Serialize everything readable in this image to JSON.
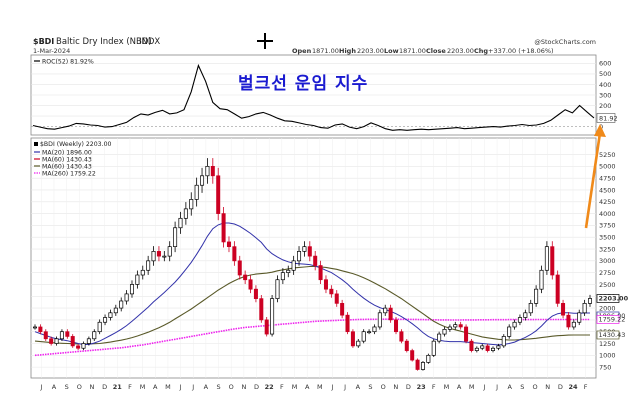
{
  "header": {
    "symbol": "$BDI",
    "name": "Baltic Dry Index (NBD)",
    "exchange": "INDX",
    "date": "1-Mar-2024",
    "source": "@StockCharts.com",
    "open_label": "Open",
    "open": "1871.00",
    "high_label": "High",
    "high": "2203.00",
    "low_label": "Low",
    "low": "1871.00",
    "close_label": "Close",
    "close": "2203.00",
    "chg_label": "Chg",
    "chg": "+337.00 (+18.06%)"
  },
  "overlay_title": "벌크선 운임 지수",
  "colors": {
    "price_up": "#000000",
    "price_down": "#cc0022",
    "ma20": "#3333aa",
    "ma60": "#5a5a2a",
    "ma260": "#ee22ee",
    "roc": "#000000",
    "arrow": "#f08a1a"
  },
  "chart_data": [
    {
      "type": "line",
      "title": "ROC(52) 81.92%",
      "legend": [
        "ROC(52) 81.92%"
      ],
      "ylim": [
        -80,
        680
      ],
      "y_ticks": [
        "600",
        "500",
        "400",
        "300",
        "200",
        "100",
        "0"
      ],
      "current_value_label": "81.92",
      "series": [
        {
          "name": "ROC(52)",
          "values": [
            10,
            -5,
            -20,
            -25,
            -10,
            5,
            30,
            25,
            15,
            10,
            -5,
            0,
            20,
            40,
            85,
            120,
            110,
            135,
            155,
            120,
            130,
            160,
            330,
            580,
            430,
            230,
            170,
            160,
            120,
            80,
            95,
            120,
            135,
            110,
            80,
            55,
            50,
            35,
            20,
            10,
            -10,
            -15,
            15,
            25,
            -5,
            -20,
            0,
            35,
            10,
            -20,
            -35,
            -30,
            -35,
            -30,
            -25,
            -30,
            -25,
            -20,
            -15,
            -10,
            -20,
            -15,
            -10,
            -5,
            0,
            -5,
            5,
            10,
            20,
            10,
            15,
            30,
            60,
            110,
            160,
            130,
            200,
            140,
            81.92
          ]
        }
      ]
    },
    {
      "type": "line",
      "title": "$BDI (Weekly) 2203.00",
      "legend": [
        "$BDI (Weekly) 2203.00",
        "MA(20) 1896.00",
        "MA(60) 1430.43",
        "MA(60) 1430.43",
        "MA(260) 1759.22"
      ],
      "ylim": [
        520,
        5600
      ],
      "y_ticks": [
        "5250",
        "5000",
        "4750",
        "4500",
        "4250",
        "4000",
        "3750",
        "3500",
        "3250",
        "3000",
        "2750",
        "2500",
        "2250",
        "2000",
        "1750",
        "1500",
        "1250",
        "1000",
        "750"
      ],
      "x_ticks": [
        "J",
        "A",
        "S",
        "O",
        "N",
        "D",
        "21",
        "F",
        "M",
        "A",
        "M",
        "J",
        "J",
        "A",
        "S",
        "O",
        "N",
        "D",
        "22",
        "F",
        "M",
        "A",
        "M",
        "J",
        "J",
        "A",
        "S",
        "O",
        "N",
        "D",
        "23",
        "F",
        "M",
        "A",
        "M",
        "J",
        "J",
        "A",
        "S",
        "O",
        "N",
        "D",
        "24",
        "F"
      ],
      "right_labels": [
        "2203.00",
        "1896.00",
        "1759.22",
        "1430.43"
      ],
      "series": [
        {
          "name": "Price",
          "values": [
            1600,
            1500,
            1350,
            1250,
            1350,
            1500,
            1400,
            1200,
            1150,
            1250,
            1350,
            1500,
            1700,
            1800,
            1900,
            2000,
            2150,
            2300,
            2500,
            2700,
            2800,
            3000,
            3200,
            3100,
            3100,
            3300,
            3700,
            3900,
            4100,
            4300,
            4600,
            4800,
            5000,
            4800,
            4000,
            3400,
            3300,
            3000,
            2700,
            2600,
            2400,
            2200,
            1750,
            1450,
            2200,
            2600,
            2750,
            2800,
            3000,
            3200,
            3300,
            3100,
            2900,
            2600,
            2400,
            2300,
            2100,
            1850,
            1500,
            1200,
            1300,
            1500,
            1500,
            1600,
            1900,
            2000,
            1750,
            1500,
            1300,
            1100,
            900,
            700,
            850,
            1000,
            1300,
            1450,
            1550,
            1600,
            1650,
            1600,
            1300,
            1100,
            1150,
            1200,
            1100,
            1150,
            1200,
            1400,
            1600,
            1700,
            1800,
            1900,
            2100,
            2400,
            2800,
            3300,
            2700,
            2100,
            1850,
            1600,
            1700,
            1900,
            2100,
            2203
          ]
        },
        {
          "name": "MA(20)",
          "values": [
            1500,
            1460,
            1420,
            1380,
            1350,
            1330,
            1310,
            1280,
            1250,
            1230,
            1230,
            1260,
            1300,
            1360,
            1420,
            1480,
            1550,
            1630,
            1720,
            1820,
            1920,
            2020,
            2130,
            2230,
            2330,
            2440,
            2550,
            2680,
            2820,
            2970,
            3140,
            3320,
            3520,
            3680,
            3760,
            3800,
            3800,
            3780,
            3730,
            3660,
            3580,
            3490,
            3390,
            3250,
            3150,
            3080,
            3020,
            2980,
            2950,
            2940,
            2930,
            2920,
            2890,
            2850,
            2800,
            2750,
            2680,
            2600,
            2510,
            2400,
            2300,
            2210,
            2130,
            2060,
            2010,
            1970,
            1930,
            1880,
            1820,
            1750,
            1670,
            1580,
            1480,
            1400,
            1350,
            1320,
            1300,
            1290,
            1290,
            1290,
            1280,
            1270,
            1260,
            1250,
            1240,
            1230,
            1220,
            1230,
            1250,
            1280,
            1330,
            1380,
            1440,
            1520,
            1620,
            1740,
            1830,
            1880,
            1900,
            1900,
            1890,
            1890,
            1895,
            1896
          ]
        },
        {
          "name": "MA(60)",
          "values": [
            1300,
            1290,
            1280,
            1270,
            1260,
            1255,
            1250,
            1245,
            1240,
            1240,
            1240,
            1245,
            1250,
            1265,
            1280,
            1300,
            1320,
            1345,
            1375,
            1410,
            1450,
            1490,
            1535,
            1585,
            1640,
            1700,
            1770,
            1840,
            1910,
            1980,
            2060,
            2140,
            2220,
            2300,
            2380,
            2450,
            2520,
            2580,
            2630,
            2670,
            2700,
            2720,
            2730,
            2740,
            2760,
            2790,
            2810,
            2830,
            2850,
            2860,
            2870,
            2880,
            2880,
            2870,
            2860,
            2840,
            2820,
            2790,
            2760,
            2730,
            2690,
            2640,
            2590,
            2530,
            2470,
            2410,
            2340,
            2270,
            2200,
            2120,
            2040,
            1960,
            1880,
            1800,
            1720,
            1660,
            1610,
            1570,
            1540,
            1510,
            1480,
            1450,
            1420,
            1390,
            1370,
            1355,
            1340,
            1330,
            1325,
            1325,
            1330,
            1340,
            1350,
            1360,
            1375,
            1390,
            1405,
            1415,
            1422,
            1428,
            1430,
            1430,
            1430,
            1430.43
          ]
        },
        {
          "name": "MA(260)",
          "values": [
            1000,
            1010,
            1020,
            1030,
            1040,
            1050,
            1060,
            1070,
            1080,
            1090,
            1100,
            1110,
            1120,
            1130,
            1140,
            1150,
            1160,
            1175,
            1190,
            1205,
            1220,
            1240,
            1260,
            1280,
            1300,
            1320,
            1340,
            1360,
            1380,
            1400,
            1420,
            1440,
            1460,
            1480,
            1500,
            1520,
            1540,
            1560,
            1575,
            1590,
            1600,
            1610,
            1620,
            1630,
            1640,
            1650,
            1660,
            1670,
            1680,
            1690,
            1700,
            1710,
            1720,
            1725,
            1730,
            1735,
            1740,
            1745,
            1750,
            1755,
            1758,
            1760,
            1762,
            1763,
            1764,
            1765,
            1765,
            1764,
            1763,
            1762,
            1760,
            1758,
            1756,
            1754,
            1752,
            1750,
            1749,
            1748,
            1748,
            1748,
            1749,
            1750,
            1750,
            1751,
            1752,
            1753,
            1754,
            1755,
            1756,
            1756,
            1757,
            1757,
            1757,
            1758,
            1758,
            1758,
            1758,
            1759,
            1759,
            1759,
            1759,
            1759,
            1759.22,
            1759.22
          ]
        }
      ]
    }
  ]
}
